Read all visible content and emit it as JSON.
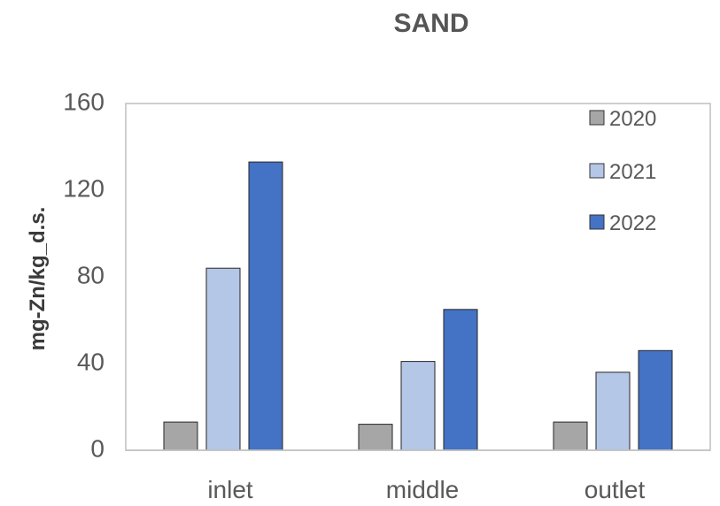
{
  "chart_data": {
    "type": "bar",
    "title": "SAND",
    "xlabel": "",
    "ylabel": "mg-Zn/kg_d.s.",
    "ylim": [
      0,
      160
    ],
    "yticks": [
      "0",
      "40",
      "80",
      "120",
      "160"
    ],
    "categories": [
      "inlet",
      "middle",
      "outlet"
    ],
    "series": [
      {
        "name": "2020",
        "values": [
          13,
          12,
          13
        ],
        "color": "#a6a6a6"
      },
      {
        "name": "2021",
        "values": [
          84,
          41,
          36
        ],
        "color": "#b4c7e7"
      },
      {
        "name": "2022",
        "values": [
          133,
          65,
          46
        ],
        "color": "#4472c4"
      }
    ],
    "grid": false,
    "legend": "top-right"
  }
}
